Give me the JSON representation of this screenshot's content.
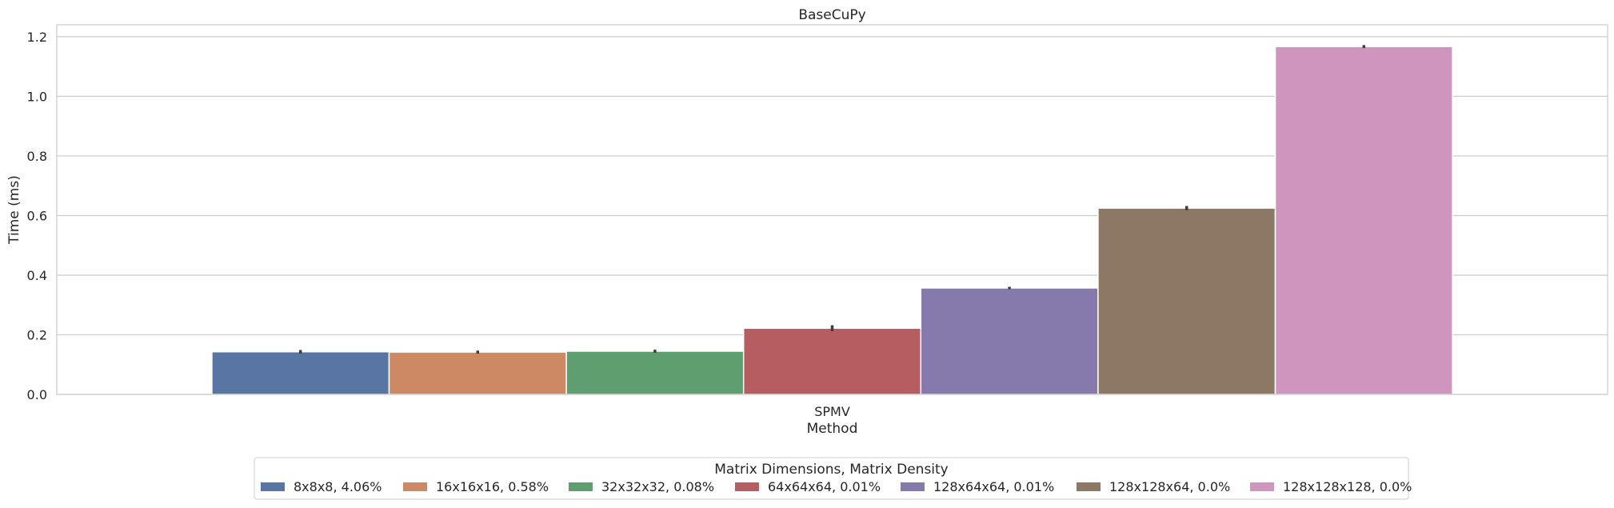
{
  "chart_data": {
    "type": "bar",
    "title": "BaseCuPy",
    "xlabel": "Method",
    "ylabel": "Time (ms)",
    "categories": [
      "SPMV"
    ],
    "ylim": [
      0,
      1.24
    ],
    "yticks": [
      "0.0",
      "0.2",
      "0.4",
      "0.6",
      "0.8",
      "1.0",
      "1.2"
    ],
    "grid": true,
    "legend": {
      "title": "Matrix Dimensions, Matrix Density",
      "placement": "bottom-center"
    },
    "series": [
      {
        "name": "8x8x8, 4.06%",
        "values": [
          0.143
        ],
        "err": [
          0.012
        ],
        "color": "#5875a4"
      },
      {
        "name": "16x16x16, 0.58%",
        "values": [
          0.142
        ],
        "err": [
          0.01
        ],
        "color": "#cc8963"
      },
      {
        "name": "32x32x32, 0.08%",
        "values": [
          0.145
        ],
        "err": [
          0.01
        ],
        "color": "#5f9e6e"
      },
      {
        "name": "64x64x64, 0.01%",
        "values": [
          0.222
        ],
        "err": [
          0.02
        ],
        "color": "#b55d60"
      },
      {
        "name": "128x64x64, 0.01%",
        "values": [
          0.357
        ],
        "err": [
          0.008
        ],
        "color": "#857aab"
      },
      {
        "name": "128x128x64, 0.0%",
        "values": [
          0.625
        ],
        "err": [
          0.014
        ],
        "color": "#8d7866"
      },
      {
        "name": "128x128x128, 0.0%",
        "values": [
          1.167
        ],
        "err": [
          0.01
        ],
        "color": "#d095bf"
      }
    ]
  }
}
